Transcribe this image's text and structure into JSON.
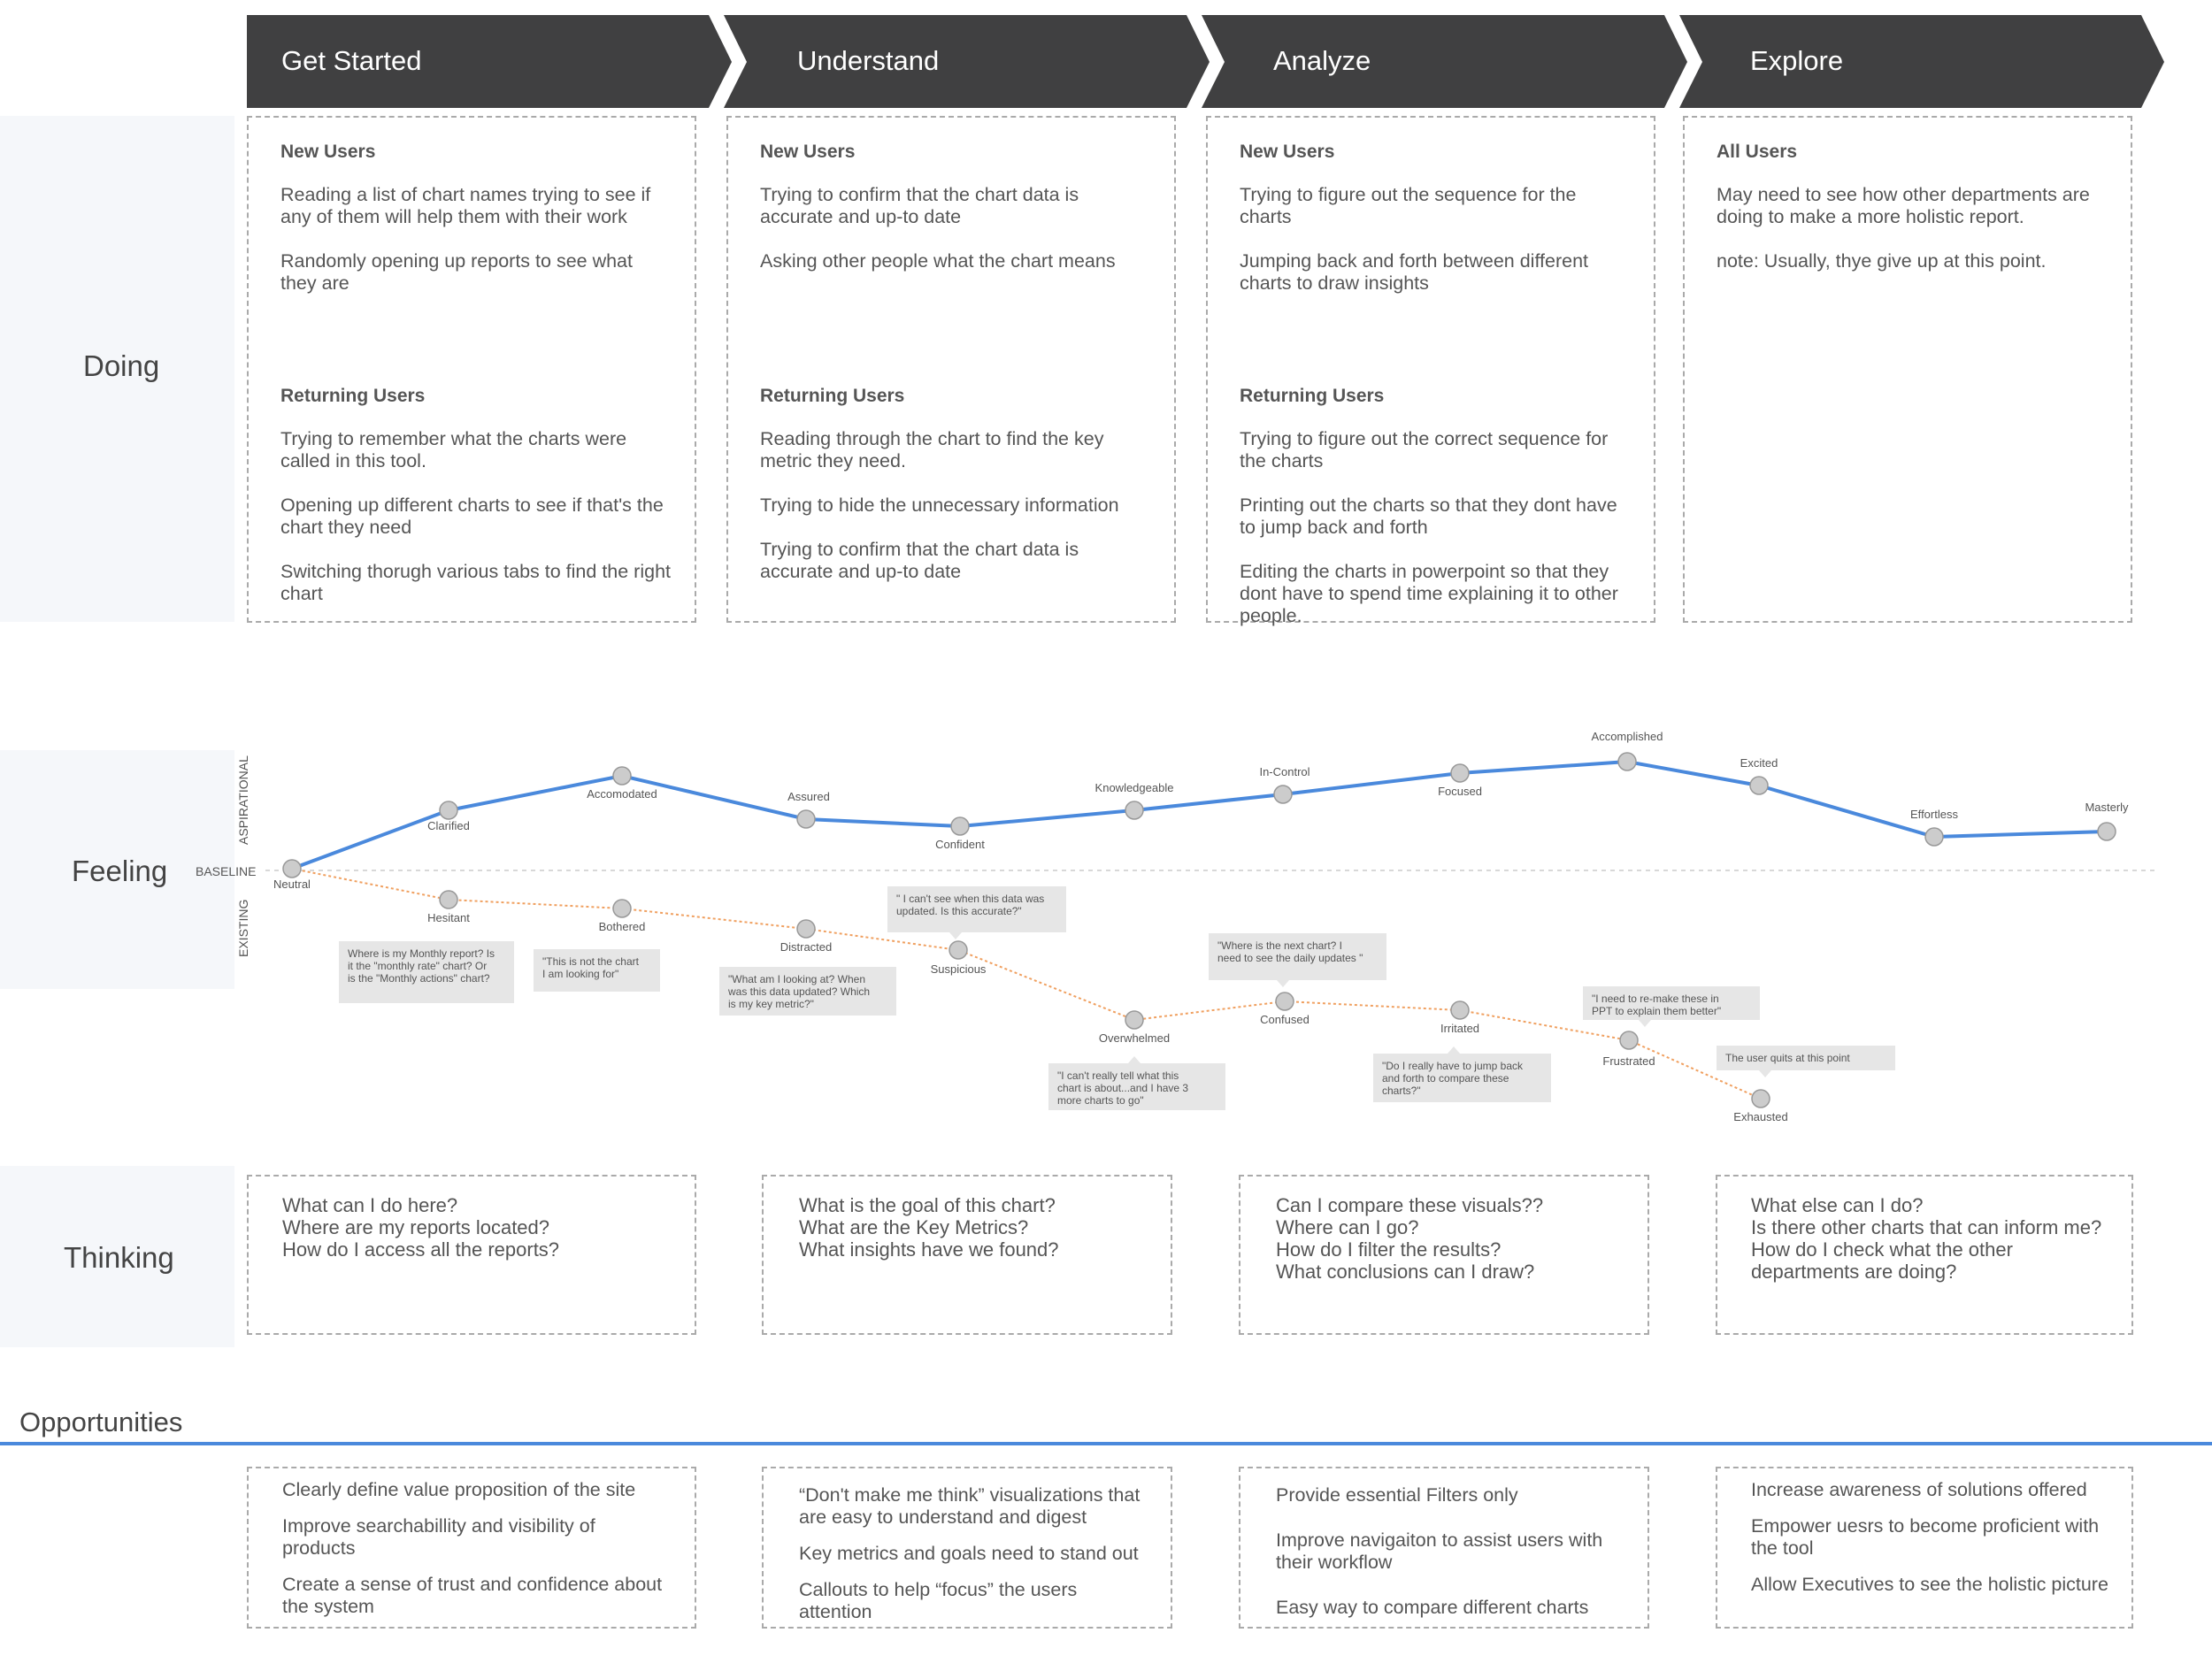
{
  "stages": [
    "Get Started",
    "Understand",
    "Analyze",
    "Explore"
  ],
  "rows": {
    "doing": "Doing",
    "feeling": "Feeling",
    "thinking": "Thinking",
    "opportunities": "Opportunities"
  },
  "doing": [
    {
      "sections": [
        {
          "heading": "New Users",
          "items": [
            "Reading a list of chart names trying to see if any of them will help them with their work",
            "Randomly opening up reports to see what they are"
          ]
        },
        {
          "heading": "Returning Users",
          "items": [
            "Trying to remember what the charts were called in this tool.",
            "Opening up different charts to see if that's the chart they need",
            "Switching thorugh various tabs to find the right chart"
          ]
        }
      ]
    },
    {
      "sections": [
        {
          "heading": "New Users",
          "items": [
            "Trying to confirm that the chart data is accurate and up-to date",
            "Asking other people what the chart means"
          ]
        },
        {
          "heading": "Returning Users",
          "items": [
            "Reading through the chart to find the key metric they need.",
            "Trying to hide the unnecessary information",
            "Trying to confirm that the chart data is accurate and up-to date"
          ]
        }
      ]
    },
    {
      "sections": [
        {
          "heading": "New Users",
          "items": [
            "Trying to figure out the sequence for the charts",
            "Jumping back and forth between different charts to draw insights"
          ]
        },
        {
          "heading": "Returning Users",
          "items": [
            "Trying to figure out the correct sequence for the charts",
            "Printing out the charts so that they dont have to jump back and forth",
            "Editing the charts in powerpoint so that they dont have to spend time explaining it to other people."
          ]
        }
      ]
    },
    {
      "sections": [
        {
          "heading": "All Users",
          "items": [
            "May need to see how other departments are doing to make a more holistic report.",
            "note: Usually, thye give up at this point."
          ]
        }
      ]
    }
  ],
  "feeling": {
    "axis_aspirational": "ASPIRATIONAL",
    "axis_existing": "EXISTING",
    "baseline": "BASELINE",
    "aspirational": [
      "Neutral",
      "Clarified",
      "Accomodated",
      "Assured",
      "Confident",
      "Knowledgeable",
      "In-Control",
      "Focused",
      "Accomplished",
      "Excited",
      "Effortless",
      "Masterly"
    ],
    "existing": [
      "Neutral",
      "Hesitant",
      "Bothered",
      "Distracted",
      "Suspicious",
      "Overwhelmed",
      "Confused",
      "Irritated",
      "Frustrated",
      "Exhausted"
    ],
    "quotes": [
      [
        "Where is my Monthly report? Is",
        "it the \"monthly rate\" chart? Or",
        "is the  \"Monthly actions\" chart?"
      ],
      [
        "\"This is not the chart",
        "I am looking for\""
      ],
      [
        "\"What am I looking at? When",
        "was this data updated? Which",
        "is my key metric?\""
      ],
      [
        "\" I can't see when this data was",
        "updated. Is this accurate?\""
      ],
      [
        "\"I can't really tell what this",
        "chart is about...and I have 3",
        "more charts to go\""
      ],
      [
        "\"Where is the next chart? I",
        "need to see the daily updates \""
      ],
      [
        "\"Do I really have to jump back",
        "and forth to compare these",
        "charts?\""
      ],
      [
        "\"I need to re-make these in",
        "PPT to explain them better\""
      ],
      [
        "The user quits at this point"
      ]
    ],
    "colors": {
      "aspirational": "#4a89dc",
      "existing": "#f0a060",
      "dot": "#cccccc"
    }
  },
  "thinking": [
    [
      "What can I do here?",
      "Where are my reports located?",
      "How do I access all the reports?"
    ],
    [
      "What is the goal of this chart?",
      "What are the Key Metrics?",
      "What insights have we found?"
    ],
    [
      "Can I compare these visuals??",
      "Where can I go?",
      "How do I filter the results?",
      "What conclusions can I draw?"
    ],
    [
      "What else can I do?",
      "Is there other charts that can inform me?",
      "How do I check what the other departments are doing?"
    ]
  ],
  "opportunities": [
    [
      "Clearly define value proposition of the site",
      "Improve searchabillity and visibility of products",
      "Create a sense of trust and confidence about the system"
    ],
    [
      "“Don't make me think” visualizations that are easy to understand and digest",
      "Key metrics and goals need to stand out",
      "Callouts to help “focus” the users attention"
    ],
    [
      "Provide essential Filters only",
      "Improve navigaiton to assist users with their workflow",
      "Easy way to compare different charts"
    ],
    [
      "Increase awareness of solutions offered",
      "Empower uesrs to become proficient with the tool",
      "Allow Executives to see the holistic picture"
    ]
  ]
}
